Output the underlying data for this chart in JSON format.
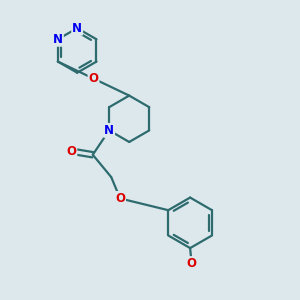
{
  "bg_color": "#dce8ec",
  "bond_color": "#2d6b6e",
  "N_color": "#0000ee",
  "O_color": "#dd0000",
  "line_width": 1.6,
  "figsize": [
    3.0,
    3.0
  ],
  "dpi": 100,
  "xlim": [
    0,
    10
  ],
  "ylim": [
    0,
    10
  ]
}
